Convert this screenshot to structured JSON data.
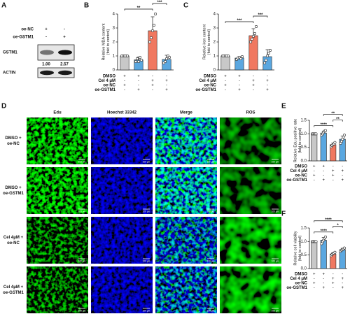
{
  "panel_labels": [
    "A",
    "B",
    "C",
    "D",
    "E",
    "F"
  ],
  "blot": {
    "conditions": [
      {
        "name": "oe-NC",
        "signs": [
          "+",
          "-"
        ]
      },
      {
        "name": "oe-GSTM1",
        "signs": [
          "-",
          "+"
        ]
      }
    ],
    "bands": [
      {
        "name": "GSTM1",
        "quantification": [
          1,
          2.57
        ],
        "quantification_labels": [
          "1.00",
          "2.57"
        ]
      },
      {
        "name": "ACTIN"
      }
    ]
  },
  "micrographs": {
    "columns": [
      "Edu",
      "Hoechst 33342",
      "Merge",
      "ROS"
    ],
    "rows": [
      [
        "DMSO +",
        "oe-NC"
      ],
      [
        "DMSO +",
        "oe-GSTM1"
      ],
      [
        "Cel 4μM +",
        "oe-NC"
      ],
      [
        "Cel 4μM +",
        "oe-GSTM1"
      ]
    ],
    "scale_bar_label": "100 μm"
  },
  "chart_data": [
    {
      "type": "bar",
      "ylabel": [
        "Relative MDA content",
        "(fold to control)"
      ],
      "values": [
        1.0,
        0.72,
        2.8,
        0.75
      ],
      "errors": [
        0.03,
        0.2,
        1.0,
        0.3
      ],
      "points": [
        [
          1,
          1,
          1,
          1,
          1
        ],
        [
          0.6,
          0.8,
          0.6,
          0.9,
          0.7
        ],
        [
          2.0,
          2.3,
          2.8,
          3.2,
          4.0
        ],
        [
          0.5,
          0.6,
          0.8,
          1.0,
          0.9
        ]
      ],
      "colors": [
        "#c8c8c8",
        "#5aa7e0",
        "#f07860",
        "#5aa7e0"
      ],
      "ylim": [
        0,
        4
      ],
      "yticks": [
        0,
        1,
        2,
        3,
        4
      ],
      "conditions": [
        {
          "name": "DMSO",
          "signs": [
            "+",
            "+",
            "-",
            "-"
          ]
        },
        {
          "name": "Cel  4 μM",
          "signs": [
            "-",
            "-",
            "+",
            "+"
          ]
        },
        {
          "name": "oe-NC",
          "signs": [
            "+",
            "-",
            "+",
            "-"
          ]
        },
        {
          "name": "oe-GSTM1",
          "signs": [
            "-",
            "+",
            "-",
            "+"
          ]
        }
      ],
      "significance": [
        {
          "from": 0,
          "to": 2,
          "label": "**"
        },
        {
          "from": 2,
          "to": 3,
          "label": "***"
        }
      ]
    },
    {
      "type": "bar",
      "ylabel": [
        "Relative iron content",
        "(fold to control)"
      ],
      "values": [
        1.0,
        0.85,
        2.45,
        0.95
      ],
      "errors": [
        0.02,
        0.1,
        0.5,
        0.5
      ],
      "points": [
        [
          1,
          1,
          1,
          1,
          1
        ],
        [
          0.75,
          0.85,
          0.9,
          0.8,
          0.95
        ],
        [
          2.0,
          2.2,
          2.4,
          2.6,
          3.1
        ],
        [
          0.5,
          0.7,
          1.0,
          1.2,
          1.4
        ]
      ],
      "colors": [
        "#c8c8c8",
        "#5aa7e0",
        "#f07860",
        "#5aa7e0"
      ],
      "ylim": [
        0,
        4
      ],
      "yticks": [
        0,
        1,
        2,
        3,
        4
      ],
      "conditions": [
        {
          "name": "DMSO",
          "signs": [
            "+",
            "+",
            "-",
            "-"
          ]
        },
        {
          "name": "Cel  4 μM",
          "signs": [
            "-",
            "-",
            "+",
            "+"
          ]
        },
        {
          "name": "oe-NC",
          "signs": [
            "+",
            "-",
            "+",
            "-"
          ]
        },
        {
          "name": "oe-GSTM1",
          "signs": [
            "-",
            "+",
            "-",
            "+"
          ]
        }
      ],
      "significance": [
        {
          "from": 0,
          "to": 2,
          "label": "***"
        },
        {
          "from": 2,
          "to": 3,
          "label": "***"
        }
      ]
    },
    {
      "type": "bar",
      "ylabel": [
        "Relative Edu positive rate",
        "(fold to control)"
      ],
      "values": [
        1.0,
        1.03,
        0.6,
        0.8
      ],
      "errors": [
        0.01,
        0.07,
        0.06,
        0.12
      ],
      "points": [
        [
          1,
          1,
          1,
          1,
          1
        ],
        [
          0.95,
          1.0,
          1.05,
          1.1,
          1.12
        ],
        [
          0.52,
          0.57,
          0.6,
          0.63,
          0.68
        ],
        [
          0.65,
          0.72,
          0.8,
          0.88,
          0.95
        ]
      ],
      "colors": [
        "#c8c8c8",
        "#5aa7e0",
        "#f07860",
        "#5aa7e0"
      ],
      "ylim": [
        0,
        1.5
      ],
      "yticks": [
        {
          "value": 0,
          "label": "0.0"
        },
        0.5,
        {
          "value": 1,
          "label": "1.0"
        },
        1.5
      ],
      "conditions": [
        {
          "name": "DMSO",
          "signs": [
            "+",
            "+",
            "-",
            "-"
          ]
        },
        {
          "name": "Cel  4 μM",
          "signs": [
            "-",
            "-",
            "+",
            "+"
          ]
        },
        {
          "name": "oe-NC",
          "signs": [
            "+",
            "-",
            "+",
            "-"
          ]
        },
        {
          "name": "oe-GSTM1",
          "signs": [
            "-",
            "+",
            "-",
            "+"
          ]
        }
      ],
      "significance": [
        {
          "from": 0,
          "to": 2,
          "label": "****"
        },
        {
          "from": 2,
          "to": 3,
          "label": "**"
        },
        {
          "from": 1,
          "to": 3,
          "label": "**"
        }
      ]
    },
    {
      "type": "bar",
      "ylabel": [
        "Relative cell viability",
        "(fold to control)"
      ],
      "values": [
        1.0,
        1.05,
        0.54,
        0.7
      ],
      "errors": [
        0.01,
        0.1,
        0.05,
        0.05
      ],
      "points": [
        [
          1,
          1,
          1,
          1,
          1
        ],
        [
          0.92,
          1.0,
          1.05,
          1.12,
          1.17
        ],
        [
          0.48,
          0.52,
          0.55,
          0.57,
          0.6
        ],
        [
          0.64,
          0.68,
          0.7,
          0.72,
          0.76
        ]
      ],
      "colors": [
        "#c8c8c8",
        "#5aa7e0",
        "#f07860",
        "#5aa7e0"
      ],
      "ylim": [
        0,
        1.5
      ],
      "yticks": [
        {
          "value": 0,
          "label": "0.0"
        },
        0.5,
        {
          "value": 1,
          "label": "1.0"
        },
        1.5
      ],
      "conditions": [
        {
          "name": "DMSO",
          "signs": [
            "+",
            "+",
            "-",
            "-"
          ]
        },
        {
          "name": "Cel  4 μM",
          "signs": [
            "-",
            "-",
            "+",
            "+"
          ]
        },
        {
          "name": "oe-NC",
          "signs": [
            "+",
            "-",
            "+",
            "-"
          ]
        },
        {
          "name": "oe-GSTM1",
          "signs": [
            "-",
            "+",
            "-",
            "+"
          ]
        }
      ],
      "significance": [
        {
          "from": 0,
          "to": 2,
          "label": "****"
        },
        {
          "from": 2,
          "to": 3,
          "label": "*"
        },
        {
          "from": 0,
          "to": 3,
          "label": "****"
        }
      ]
    }
  ]
}
